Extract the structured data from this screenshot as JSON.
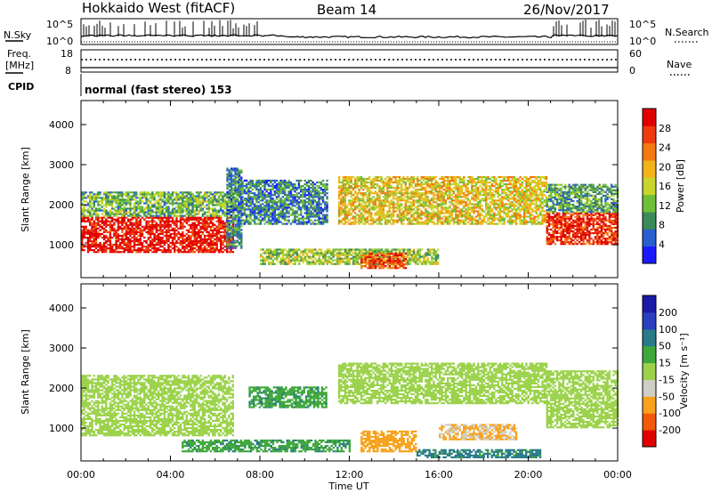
{
  "header": {
    "radar": "Hokkaido West (fitACF)",
    "beam": "Beam 14",
    "date": "26/Nov/2017"
  },
  "noise_panel": {
    "left_label": "N.Sky",
    "right_label": "N.Search",
    "left_ticks": [
      "10^5",
      "10^0"
    ],
    "right_ticks": [
      "10^5",
      "10^0"
    ]
  },
  "freq_panel": {
    "label_line1": "Freq.",
    "label_line2": "[MHz]",
    "left_ticks": [
      "18",
      "8"
    ],
    "right_ticks": [
      "60",
      "0"
    ],
    "right_label": "Nave"
  },
  "cpid": {
    "label": "CPID",
    "text": "normal (fast stereo) 153"
  },
  "colors": {
    "power_scale": [
      "#1a1aff",
      "#2a5fd0",
      "#3c8a5a",
      "#6fbf3a",
      "#c8d52a",
      "#f2b41a",
      "#f27a10",
      "#ef3a10",
      "#e00000"
    ],
    "velocity_scale": [
      "#e00000",
      "#f25a0a",
      "#f7a21a",
      "#cfcfc6",
      "#9bd24a",
      "#3fa83a",
      "#2a7a8a",
      "#2a3fbf",
      "#1a1aa8"
    ]
  },
  "chart_data": [
    {
      "type": "heatmap",
      "name": "Power",
      "ylabel": "Slant Range [km]",
      "ylim": [
        180,
        4600
      ],
      "yticks": [
        "1000",
        "2000",
        "3000",
        "4000"
      ],
      "xlim": [
        "00:00",
        "24:00"
      ],
      "colorbar_label": "Power [dB]",
      "colorbar_ticks": [
        "4",
        "8",
        "12",
        "16",
        "20",
        "24",
        "28"
      ],
      "colorbar_range": [
        0,
        32
      ],
      "regions": [
        {
          "t0": 0.0,
          "t1": 6.8,
          "r0": 800,
          "r1": 1700,
          "level": 30
        },
        {
          "t0": 0.0,
          "t1": 6.8,
          "r0": 1700,
          "r1": 2300,
          "level": 12
        },
        {
          "t0": 6.5,
          "t1": 7.2,
          "r0": 900,
          "r1": 2900,
          "level": 8
        },
        {
          "t0": 7.0,
          "t1": 11.0,
          "r0": 1500,
          "r1": 2600,
          "level": 8
        },
        {
          "t0": 11.5,
          "t1": 20.8,
          "r0": 1500,
          "r1": 2700,
          "level": 18
        },
        {
          "t0": 8.0,
          "t1": 16.0,
          "r0": 500,
          "r1": 900,
          "level": 14
        },
        {
          "t0": 12.5,
          "t1": 14.5,
          "r0": 400,
          "r1": 800,
          "level": 26
        },
        {
          "t0": 20.8,
          "t1": 24.0,
          "r0": 1000,
          "r1": 1800,
          "level": 28
        },
        {
          "t0": 20.8,
          "t1": 24.0,
          "r0": 1800,
          "r1": 2500,
          "level": 10
        }
      ]
    },
    {
      "type": "heatmap",
      "name": "Velocity",
      "ylabel": "Slant Range [km]",
      "ylim": [
        180,
        4600
      ],
      "yticks": [
        "1000",
        "2000",
        "3000",
        "4000"
      ],
      "xlim": [
        "00:00",
        "24:00"
      ],
      "xticks": [
        "00:00",
        "04:00",
        "08:00",
        "12:00",
        "16:00",
        "20:00",
        "00:00"
      ],
      "xlabel": "Time UT",
      "colorbar_label": "Velocity [m s⁻¹]",
      "colorbar_ticks": [
        "200",
        "100",
        "50",
        "15",
        "-15",
        "-50",
        "-100",
        "-200"
      ],
      "regions": [
        {
          "t0": 0.0,
          "t1": 6.8,
          "r0": 800,
          "r1": 2300,
          "velocity": 0
        },
        {
          "t0": 11.5,
          "t1": 20.8,
          "r0": 1600,
          "r1": 2600,
          "velocity": 0
        },
        {
          "t0": 20.8,
          "t1": 24.0,
          "r0": 1000,
          "r1": 2400,
          "velocity": 0
        },
        {
          "t0": 7.5,
          "t1": 11.0,
          "r0": 1500,
          "r1": 2000,
          "velocity": 40
        },
        {
          "t0": 12.5,
          "t1": 15.0,
          "r0": 400,
          "r1": 900,
          "velocity": -70
        },
        {
          "t0": 4.5,
          "t1": 12.0,
          "r0": 400,
          "r1": 700,
          "velocity": 40
        },
        {
          "t0": 16.0,
          "t1": 19.5,
          "r0": 700,
          "r1": 1100,
          "velocity": -50
        },
        {
          "t0": 15.0,
          "t1": 20.5,
          "r0": 250,
          "r1": 450,
          "velocity": 60
        }
      ]
    }
  ]
}
